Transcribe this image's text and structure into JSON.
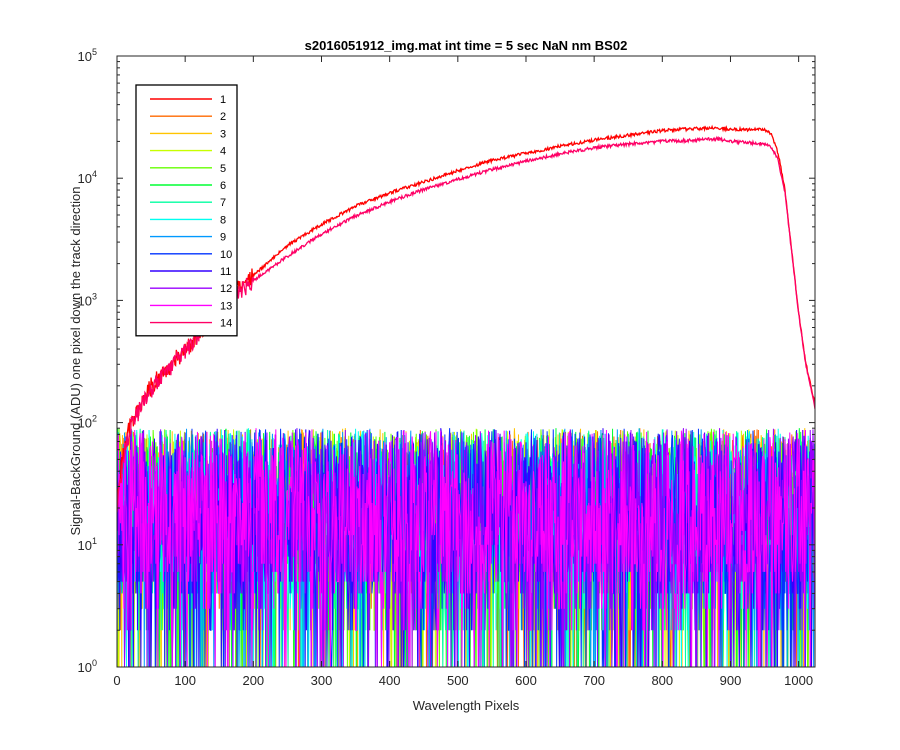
{
  "chart_data": {
    "type": "line",
    "title": "s2016051912_img.mat int time = 5 sec  NaN nm BS02",
    "xlabel": "Wavelength Pixels",
    "ylabel": "Signal-BackGround (ADU) one pixel down the track direction",
    "xlim": [
      0,
      1024
    ],
    "ylim": [
      1,
      100000
    ],
    "yscale": "log",
    "grid": false,
    "legend_position": "top-left",
    "x_ticks": [
      "0",
      "100",
      "200",
      "300",
      "400",
      "500",
      "600",
      "700",
      "800",
      "900",
      "1000"
    ],
    "x_tick_values": [
      0,
      100,
      200,
      300,
      400,
      500,
      600,
      700,
      800,
      900,
      1000
    ],
    "y_ticks": [
      {
        "base": "10",
        "exp": "0",
        "value": 1
      },
      {
        "base": "10",
        "exp": "1",
        "value": 10
      },
      {
        "base": "10",
        "exp": "2",
        "value": 100
      },
      {
        "base": "10",
        "exp": "3",
        "value": 1000
      },
      {
        "base": "10",
        "exp": "4",
        "value": 10000
      },
      {
        "base": "10",
        "exp": "5",
        "value": 100000
      }
    ],
    "series": [
      {
        "name": "1",
        "color": "#ff0000",
        "kind": "signal",
        "x": [
          0,
          10,
          20,
          50,
          100,
          130,
          150,
          200,
          250,
          300,
          350,
          400,
          450,
          500,
          550,
          600,
          650,
          700,
          750,
          800,
          850,
          880,
          900,
          930,
          950,
          960,
          970,
          980,
          990,
          1000,
          1010,
          1024
        ],
        "y": [
          25,
          60,
          100,
          200,
          400,
          650,
          900,
          1600,
          2800,
          4200,
          5900,
          7600,
          9300,
          11500,
          14000,
          16000,
          18300,
          20500,
          22500,
          24500,
          25500,
          26000,
          25000,
          25000,
          25000,
          23000,
          16000,
          8000,
          2500,
          800,
          320,
          140
        ]
      },
      {
        "name": "2",
        "color": "#ff6a00",
        "kind": "noise",
        "seed": 2
      },
      {
        "name": "3",
        "color": "#ffc400",
        "kind": "noise",
        "seed": 3
      },
      {
        "name": "4",
        "color": "#c8ff00",
        "kind": "noise",
        "seed": 4
      },
      {
        "name": "5",
        "color": "#66ff00",
        "kind": "noise",
        "seed": 5
      },
      {
        "name": "6",
        "color": "#00ff33",
        "kind": "noise",
        "seed": 6
      },
      {
        "name": "7",
        "color": "#00ffa0",
        "kind": "noise",
        "seed": 7
      },
      {
        "name": "8",
        "color": "#00fff0",
        "kind": "noise",
        "seed": 8
      },
      {
        "name": "9",
        "color": "#0099ff",
        "kind": "noise",
        "seed": 9
      },
      {
        "name": "10",
        "color": "#0033ff",
        "kind": "noise",
        "seed": 10
      },
      {
        "name": "11",
        "color": "#3300ff",
        "kind": "noise",
        "seed": 11
      },
      {
        "name": "12",
        "color": "#9900ff",
        "kind": "noise",
        "seed": 12
      },
      {
        "name": "13",
        "color": "#ff00ff",
        "kind": "noise",
        "seed": 13
      },
      {
        "name": "14",
        "color": "#ff0066",
        "kind": "signal",
        "x": [
          0,
          10,
          20,
          50,
          100,
          130,
          150,
          200,
          250,
          300,
          350,
          400,
          450,
          500,
          550,
          600,
          650,
          700,
          750,
          800,
          850,
          880,
          900,
          930,
          950,
          960,
          970,
          980,
          990,
          1000,
          1010,
          1024
        ],
        "y": [
          22,
          55,
          95,
          190,
          400,
          640,
          880,
          1450,
          2300,
          3500,
          4900,
          6400,
          8100,
          9800,
          11800,
          13800,
          15800,
          17800,
          19000,
          20000,
          20500,
          21000,
          20000,
          19500,
          19000,
          18000,
          14000,
          7500,
          2400,
          780,
          310,
          130
        ]
      }
    ],
    "noise_level_range": [
      1,
      90
    ]
  }
}
